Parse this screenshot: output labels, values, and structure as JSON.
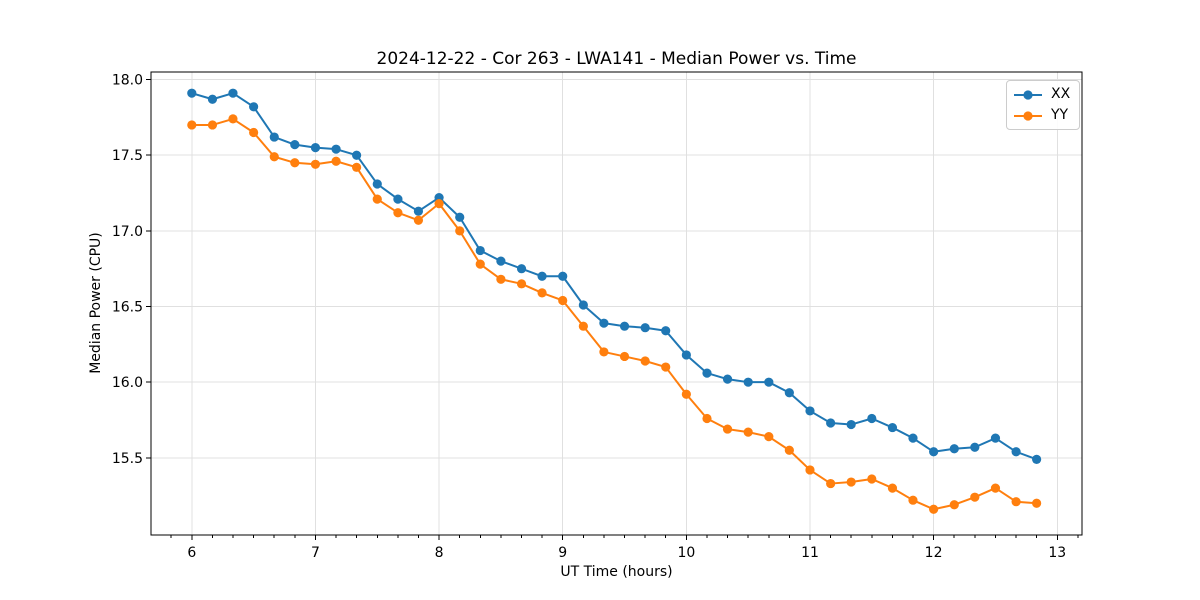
{
  "chart_data": {
    "type": "line",
    "title": "2024-12-22 - Cor 263 - LWA141 - Median Power vs. Time",
    "xlabel": "UT Time (hours)",
    "ylabel": "Median Power (CPU)",
    "xlim": [
      5.67,
      13.2
    ],
    "ylim": [
      14.99,
      18.05
    ],
    "xticks": [
      6,
      7,
      8,
      9,
      10,
      11,
      12,
      13
    ],
    "yticks": [
      15.5,
      16.0,
      16.5,
      17.0,
      17.5,
      18.0
    ],
    "ytick_decimals": 1,
    "x_minor_per_major": 6,
    "grid": true,
    "grid_color": "#e0e0e0",
    "spine_color": "#000000",
    "background": "#ffffff",
    "legend_position": "upper right",
    "x": [
      6.0,
      6.167,
      6.333,
      6.5,
      6.667,
      6.833,
      7.0,
      7.167,
      7.333,
      7.5,
      7.667,
      7.833,
      8.0,
      8.167,
      8.333,
      8.5,
      8.667,
      8.833,
      9.0,
      9.167,
      9.333,
      9.5,
      9.667,
      9.833,
      10.0,
      10.167,
      10.333,
      10.5,
      10.667,
      10.833,
      11.0,
      11.167,
      11.333,
      11.5,
      11.667,
      11.833,
      12.0,
      12.167,
      12.333,
      12.5,
      12.667,
      12.833
    ],
    "series": [
      {
        "name": "XX",
        "color": "#1f77b4",
        "values": [
          17.91,
          17.87,
          17.91,
          17.82,
          17.62,
          17.57,
          17.55,
          17.54,
          17.5,
          17.31,
          17.21,
          17.13,
          17.22,
          17.09,
          16.87,
          16.8,
          16.75,
          16.7,
          16.7,
          16.51,
          16.39,
          16.37,
          16.36,
          16.34,
          16.18,
          16.06,
          16.02,
          16.0,
          16.0,
          15.93,
          15.81,
          15.73,
          15.72,
          15.76,
          15.7,
          15.63,
          15.54,
          15.56,
          15.57,
          15.63,
          15.54,
          15.49
        ]
      },
      {
        "name": "YY",
        "color": "#ff7f0e",
        "values": [
          17.7,
          17.7,
          17.74,
          17.65,
          17.49,
          17.45,
          17.44,
          17.46,
          17.42,
          17.21,
          17.12,
          17.07,
          17.18,
          17.0,
          16.78,
          16.68,
          16.65,
          16.59,
          16.54,
          16.37,
          16.2,
          16.17,
          16.14,
          16.1,
          15.92,
          15.76,
          15.69,
          15.67,
          15.64,
          15.55,
          15.42,
          15.33,
          15.34,
          15.36,
          15.3,
          15.22,
          15.16,
          15.19,
          15.24,
          15.3,
          15.21,
          15.2
        ]
      }
    ]
  }
}
